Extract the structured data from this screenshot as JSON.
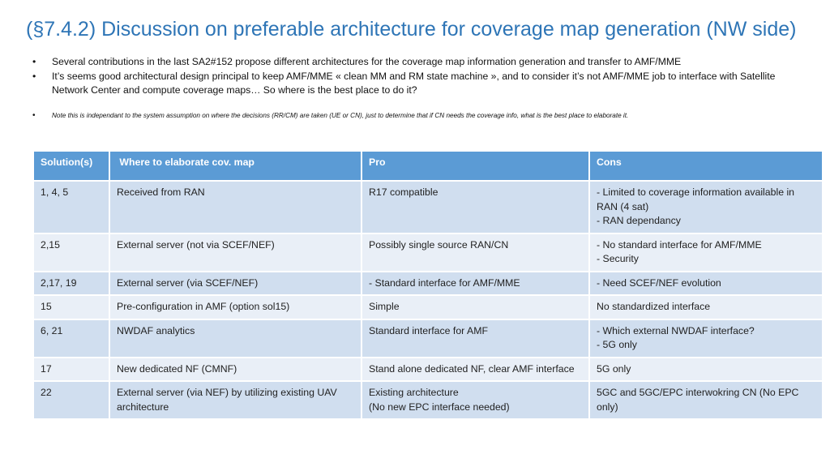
{
  "title": "(§7.4.2) Discussion on preferable architecture for coverage map generation (NW side)",
  "bullet_glyph": "•",
  "bullets": [
    "Several contributions in the last SA2#152 propose different architectures for the coverage map information generation and transfer to AMF/MME",
    "It’s seems good architectural design principal to keep AMF/MME  « clean MM and RM state machine », and to consider it’s not AMF/MME job to interface with Satellite Network Center and compute coverage maps… So where is the best place to do it?"
  ],
  "note": "Note this is independant to the system assumption on where the decisions (RR/CM) are taken (UE or CN), just to determine that if CN needs the coverage info, what is the best place to elaborate it.",
  "table": {
    "headers": [
      "Solution(s)",
      " Where to elaborate cov. map",
      "Pro",
      "Cons"
    ],
    "rows": [
      {
        "solutions": "1, 4, 5",
        "where": "Received from RAN",
        "pro": "R17 compatible",
        "cons": [
          "- Limited to coverage information available in RAN (4 sat)",
          "- RAN dependancy"
        ]
      },
      {
        "solutions": "2,15",
        "where": "External server (not via SCEF/NEF)",
        "pro": "Possibly single source RAN/CN",
        "cons": [
          "- No standard interface for AMF/MME",
          "- Security"
        ]
      },
      {
        "solutions": "2,17, 19",
        "where": "External server (via SCEF/NEF)",
        "pro": "- Standard interface for AMF/MME",
        "cons": [
          "- Need SCEF/NEF evolution"
        ]
      },
      {
        "solutions": "15",
        "where": "Pre-configuration in AMF (option sol15)",
        "pro": "Simple",
        "cons": [
          "No standardized interface"
        ]
      },
      {
        "solutions": "6, 21",
        "where": "NWDAF analytics",
        "pro": "Standard interface for AMF",
        "cons": [
          "- Which external NWDAF interface?",
          "- 5G only"
        ]
      },
      {
        "solutions": "17",
        "where": "New dedicated NF (CMNF)",
        "pro": "Stand alone dedicated NF, clear AMF interface",
        "cons": [
          "5G only"
        ]
      },
      {
        "solutions": "22",
        "where": "External server (via NEF) by utilizing existing UAV architecture",
        "pro": "Existing architecture\n(No new EPC interface needed)",
        "cons": [
          "5GC and 5GC/EPC interwokring CN (No EPC only)"
        ]
      }
    ]
  },
  "colors": {
    "title": "#2E75B6",
    "header_bg": "#5B9BD5",
    "row_odd": "#D0DEEF",
    "row_even": "#E9EFF7"
  }
}
